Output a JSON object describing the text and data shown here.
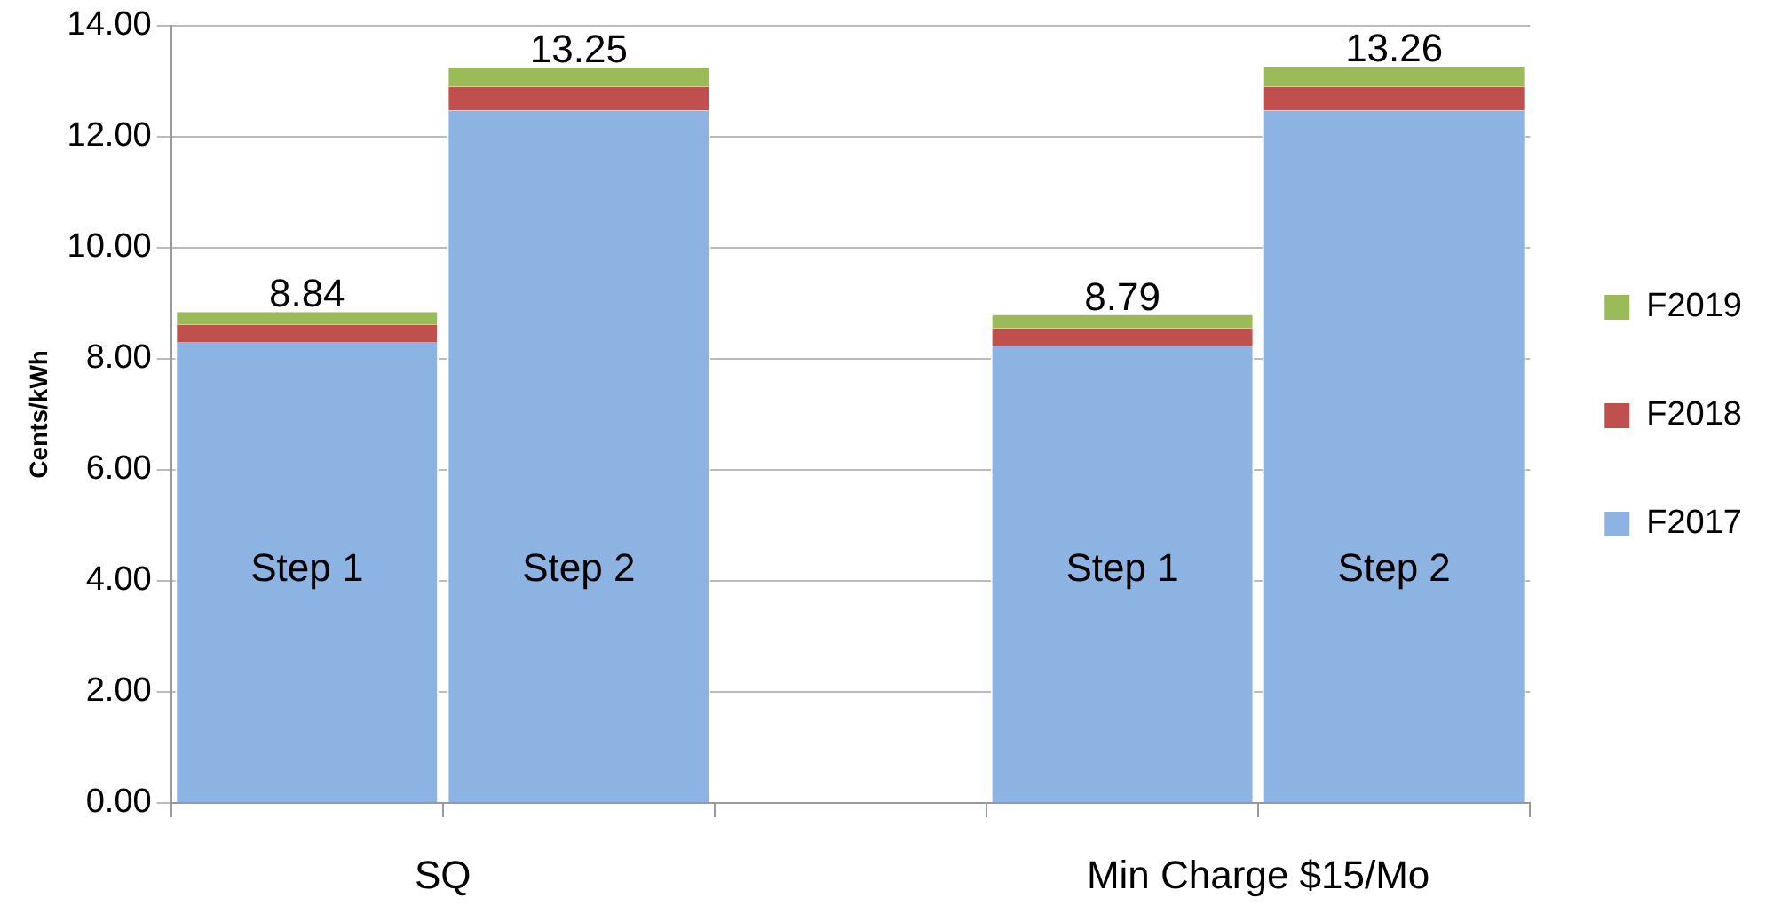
{
  "chart_data": {
    "type": "bar",
    "stacked": true,
    "ylabel": "Cents/kWh",
    "categories": [
      "Step 1",
      "Step 2",
      null,
      "Step 1",
      "Step 2"
    ],
    "series": [
      {
        "name": "F2017",
        "color": "#8db3e2",
        "values": [
          8.29,
          12.47,
          null,
          8.24,
          12.47
        ]
      },
      {
        "name": "F2018",
        "color": "#c0504d",
        "values": [
          0.32,
          0.43,
          null,
          0.31,
          0.43
        ]
      },
      {
        "name": "F2019",
        "color": "#9bbb59",
        "values": [
          0.23,
          0.35,
          null,
          0.24,
          0.36
        ]
      }
    ],
    "totals": [
      "8.84",
      "13.25",
      null,
      "8.79",
      "13.26"
    ],
    "annotations": [
      "SQ",
      "Min Charge $15/Mo"
    ],
    "ylim": [
      0,
      14
    ],
    "yticks": [
      {
        "value": 0,
        "label": "0.00"
      },
      {
        "value": 2,
        "label": "2.00"
      },
      {
        "value": 4,
        "label": "4.00"
      },
      {
        "value": 6,
        "label": "6.00"
      },
      {
        "value": 8,
        "label": "8.00"
      },
      {
        "value": 10,
        "label": "10.00"
      },
      {
        "value": 12,
        "label": "12.00"
      },
      {
        "value": 14,
        "label": "14.00"
      }
    ],
    "grid": "y",
    "legend": "right"
  }
}
